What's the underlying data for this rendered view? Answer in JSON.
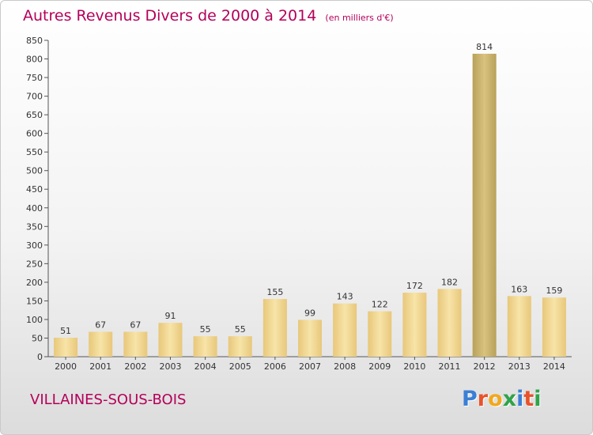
{
  "header": {
    "title": "Autres Revenus Divers de 2000 à 2014",
    "unit": "(en milliers d'€)"
  },
  "footer": {
    "commune": "VILLAINES-SOUS-BOIS",
    "logo_letters": [
      "P",
      "r",
      "o",
      "x",
      "i",
      "t",
      "i"
    ],
    "logo_colors": [
      "#3a7fd5",
      "#e8532b",
      "#f2a81d",
      "#2fa34a",
      "#3a7fd5",
      "#e8532b",
      "#2fa34a"
    ]
  },
  "colors": {
    "title": "#b4005a",
    "bar": "#e8c77a",
    "bar_light": "#f7e4a8",
    "bar_highlight": "#b7a15a",
    "bar_highlight_light": "#d9c27e"
  },
  "chart_data": {
    "type": "bar",
    "categories": [
      "2000",
      "2001",
      "2002",
      "2003",
      "2004",
      "2005",
      "2006",
      "2007",
      "2008",
      "2009",
      "2010",
      "2011",
      "2012",
      "2013",
      "2014"
    ],
    "values": [
      51,
      67,
      67,
      91,
      55,
      55,
      155,
      99,
      143,
      122,
      172,
      182,
      814,
      163,
      159
    ],
    "value_labels": [
      "51",
      "67",
      "67",
      "91",
      "55",
      "55",
      "155",
      "99",
      "143",
      "122",
      "172",
      "182",
      "814",
      "163",
      "159"
    ],
    "ylim": [
      0,
      850
    ],
    "yticks": [
      0,
      50,
      100,
      150,
      200,
      250,
      300,
      350,
      400,
      450,
      500,
      550,
      600,
      650,
      700,
      750,
      800,
      850
    ],
    "highlight_category": "2012",
    "grid": false,
    "legend": "none"
  }
}
